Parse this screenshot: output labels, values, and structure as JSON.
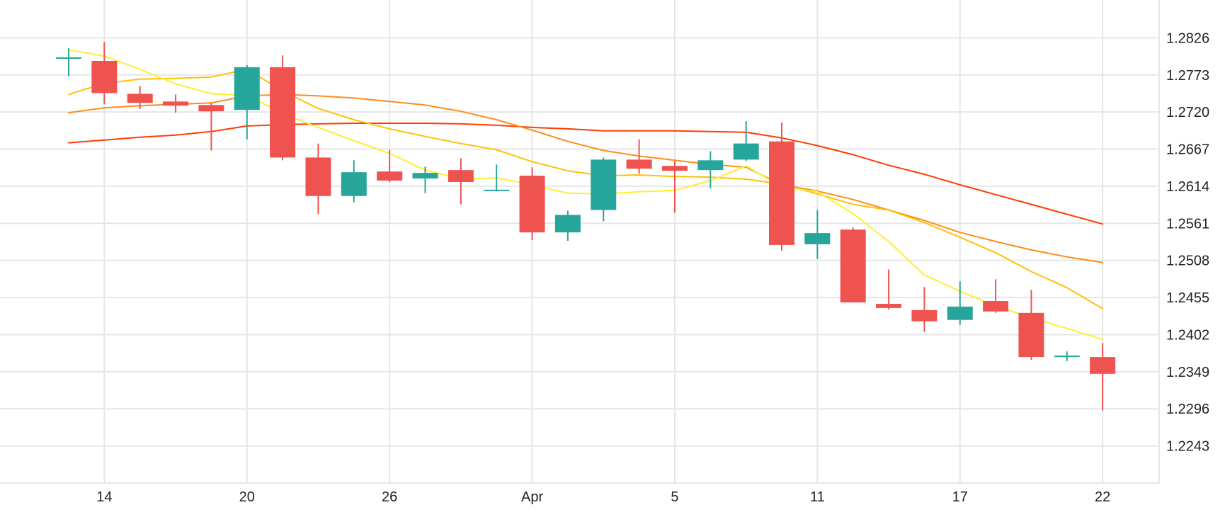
{
  "chart_data": {
    "type": "candlestick",
    "x_tick_labels": [
      "14",
      "20",
      "26",
      "Apr",
      "5",
      "11",
      "17",
      "22"
    ],
    "y_tick_labels": [
      "1.2826",
      "1.2773",
      "1.2720",
      "1.2667",
      "1.2614",
      "1.2561",
      "1.2508",
      "1.2455",
      "1.2402",
      "1.2349",
      "1.2296",
      "1.2243"
    ],
    "ylim": [
      1.219,
      1.288
    ],
    "grid": true,
    "colors": {
      "up": "#26a69a",
      "down": "#ef5350",
      "ma_fast": "#ffee33",
      "ma_2": "#ffc107",
      "ma_3": "#ff8c1a",
      "ma_slow": "#ff3d00",
      "grid": "#e6e6e6",
      "text": "#222222"
    },
    "candles": [
      {
        "open": 1.2797,
        "high": 1.2811,
        "low": 1.2771,
        "close": 1.2797
      },
      {
        "open": 1.2793,
        "high": 1.282,
        "low": 1.2731,
        "close": 1.2747
      },
      {
        "open": 1.2746,
        "high": 1.2757,
        "low": 1.2724,
        "close": 1.2733
      },
      {
        "open": 1.2735,
        "high": 1.2745,
        "low": 1.2719,
        "close": 1.2729
      },
      {
        "open": 1.273,
        "high": 1.2733,
        "low": 1.2665,
        "close": 1.2721
      },
      {
        "open": 1.2723,
        "high": 1.2787,
        "low": 1.2681,
        "close": 1.2784
      },
      {
        "open": 1.2784,
        "high": 1.2801,
        "low": 1.2651,
        "close": 1.2655
      },
      {
        "open": 1.2655,
        "high": 1.2675,
        "low": 1.2574,
        "close": 1.26
      },
      {
        "open": 1.26,
        "high": 1.2651,
        "low": 1.2591,
        "close": 1.2634
      },
      {
        "open": 1.2635,
        "high": 1.2666,
        "low": 1.262,
        "close": 1.2622
      },
      {
        "open": 1.2625,
        "high": 1.2642,
        "low": 1.2604,
        "close": 1.2633
      },
      {
        "open": 1.2637,
        "high": 1.2654,
        "low": 1.2588,
        "close": 1.262
      },
      {
        "open": 1.2608,
        "high": 1.2645,
        "low": 1.2607,
        "close": 1.2608
      },
      {
        "open": 1.2629,
        "high": 1.2641,
        "low": 1.2537,
        "close": 1.2548
      },
      {
        "open": 1.2548,
        "high": 1.2579,
        "low": 1.2536,
        "close": 1.2573
      },
      {
        "open": 1.258,
        "high": 1.2655,
        "low": 1.2564,
        "close": 1.2652
      },
      {
        "open": 1.2652,
        "high": 1.2681,
        "low": 1.2632,
        "close": 1.2639
      },
      {
        "open": 1.2643,
        "high": 1.265,
        "low": 1.2576,
        "close": 1.2636
      },
      {
        "open": 1.2637,
        "high": 1.2664,
        "low": 1.2611,
        "close": 1.2651
      },
      {
        "open": 1.2652,
        "high": 1.2707,
        "low": 1.265,
        "close": 1.2675
      },
      {
        "open": 1.2678,
        "high": 1.2705,
        "low": 1.2522,
        "close": 1.253
      },
      {
        "open": 1.2531,
        "high": 1.258,
        "low": 1.251,
        "close": 1.2547
      },
      {
        "open": 1.2552,
        "high": 1.2555,
        "low": 1.245,
        "close": 1.2448
      },
      {
        "open": 1.2446,
        "high": 1.2495,
        "low": 1.2438,
        "close": 1.244
      },
      {
        "open": 1.2437,
        "high": 1.247,
        "low": 1.2406,
        "close": 1.2421
      },
      {
        "open": 1.2423,
        "high": 1.2478,
        "low": 1.2416,
        "close": 1.2442
      },
      {
        "open": 1.245,
        "high": 1.2481,
        "low": 1.2433,
        "close": 1.2435
      },
      {
        "open": 1.2433,
        "high": 1.2466,
        "low": 1.2366,
        "close": 1.237
      },
      {
        "open": 1.237,
        "high": 1.2378,
        "low": 1.2364,
        "close": 1.2372
      },
      {
        "open": 1.237,
        "high": 1.239,
        "low": 1.2294,
        "close": 1.2346
      }
    ],
    "series": [
      {
        "color": "#ffee33",
        "values": [
          1.2809,
          1.28,
          1.2781,
          1.276,
          1.2746,
          1.2744,
          1.2718,
          1.2698,
          1.2679,
          1.2661,
          1.2637,
          1.2624,
          1.2626,
          1.2616,
          1.2604,
          1.2603,
          1.2606,
          1.2608,
          1.2622,
          1.2643,
          1.2613,
          1.2606,
          1.2575,
          1.2535,
          1.2487,
          1.2464,
          1.2443,
          1.2426,
          1.2411,
          1.2395
        ]
      },
      {
        "color": "#ffc107",
        "values": [
          1.2745,
          1.2761,
          1.2767,
          1.2768,
          1.277,
          1.2781,
          1.275,
          1.2725,
          1.2709,
          1.2696,
          1.2685,
          1.2675,
          1.2666,
          1.2649,
          1.2636,
          1.2629,
          1.263,
          1.2628,
          1.2627,
          1.2624,
          1.2617,
          1.2603,
          1.2588,
          1.258,
          1.2562,
          1.2541,
          1.2519,
          1.2492,
          1.2469,
          1.2439
        ]
      },
      {
        "color": "#ff8c1a",
        "values": [
          1.2719,
          1.2726,
          1.2729,
          1.2731,
          1.2733,
          1.2743,
          1.2745,
          1.2743,
          1.274,
          1.2735,
          1.273,
          1.2721,
          1.2709,
          1.2694,
          1.2678,
          1.2665,
          1.2657,
          1.2651,
          1.2645,
          1.2641,
          1.2616,
          1.2607,
          1.2595,
          1.258,
          1.2565,
          1.2548,
          1.2535,
          1.2523,
          1.2513,
          1.2505
        ]
      },
      {
        "color": "#ff3d00",
        "values": [
          1.2676,
          1.268,
          1.2684,
          1.2687,
          1.2692,
          1.27,
          1.2702,
          1.2703,
          1.2704,
          1.2704,
          1.2704,
          1.2703,
          1.2701,
          1.2698,
          1.2696,
          1.2693,
          1.2693,
          1.2693,
          1.2692,
          1.2691,
          1.2683,
          1.2672,
          1.2659,
          1.2644,
          1.2631,
          1.2616,
          1.2602,
          1.2588,
          1.2574,
          1.256
        ]
      }
    ]
  }
}
